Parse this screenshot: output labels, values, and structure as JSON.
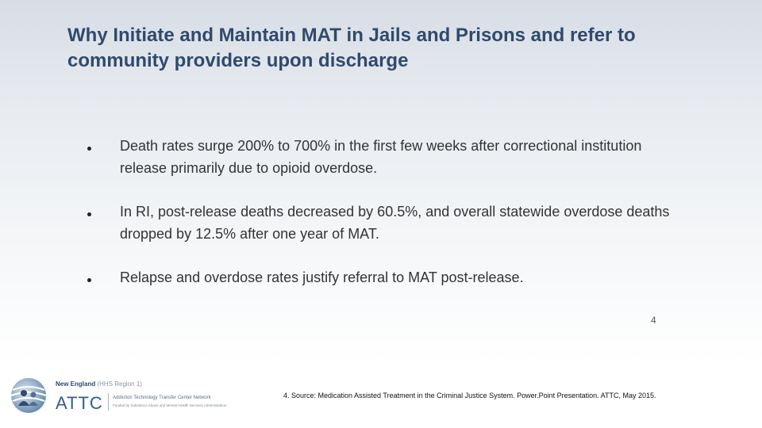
{
  "slide": {
    "title": "Why Initiate and Maintain MAT in Jails and Prisons and refer to community providers upon discharge",
    "bullets": [
      "Death rates surge 200% to 700% in the first few weeks after correctional institution release primarily due to opioid overdose.",
      "In RI, post-release deaths decreased by 60.5%, and overall statewide overdose deaths dropped by 12.5% after one year of MAT.",
      "Relapse and overdose rates justify referral to MAT post-release."
    ],
    "footnote_number": "4",
    "source": "4. Source: Medication Assisted Treatment in the Criminal Justice System.  Power.Point Presentation. ATTC, May 2015."
  },
  "logo": {
    "region_name": "New England",
    "region_sub": "(HHS Region 1)",
    "name": "ATTC",
    "network": "Addiction Technology Transfer Center Network",
    "funded_by": "Funded by Substance Abuse and Mental Health Services Administration"
  },
  "colors": {
    "title": "#2f4a6e",
    "body_text": "#333333",
    "logo_blue": "#2f5f8a"
  }
}
